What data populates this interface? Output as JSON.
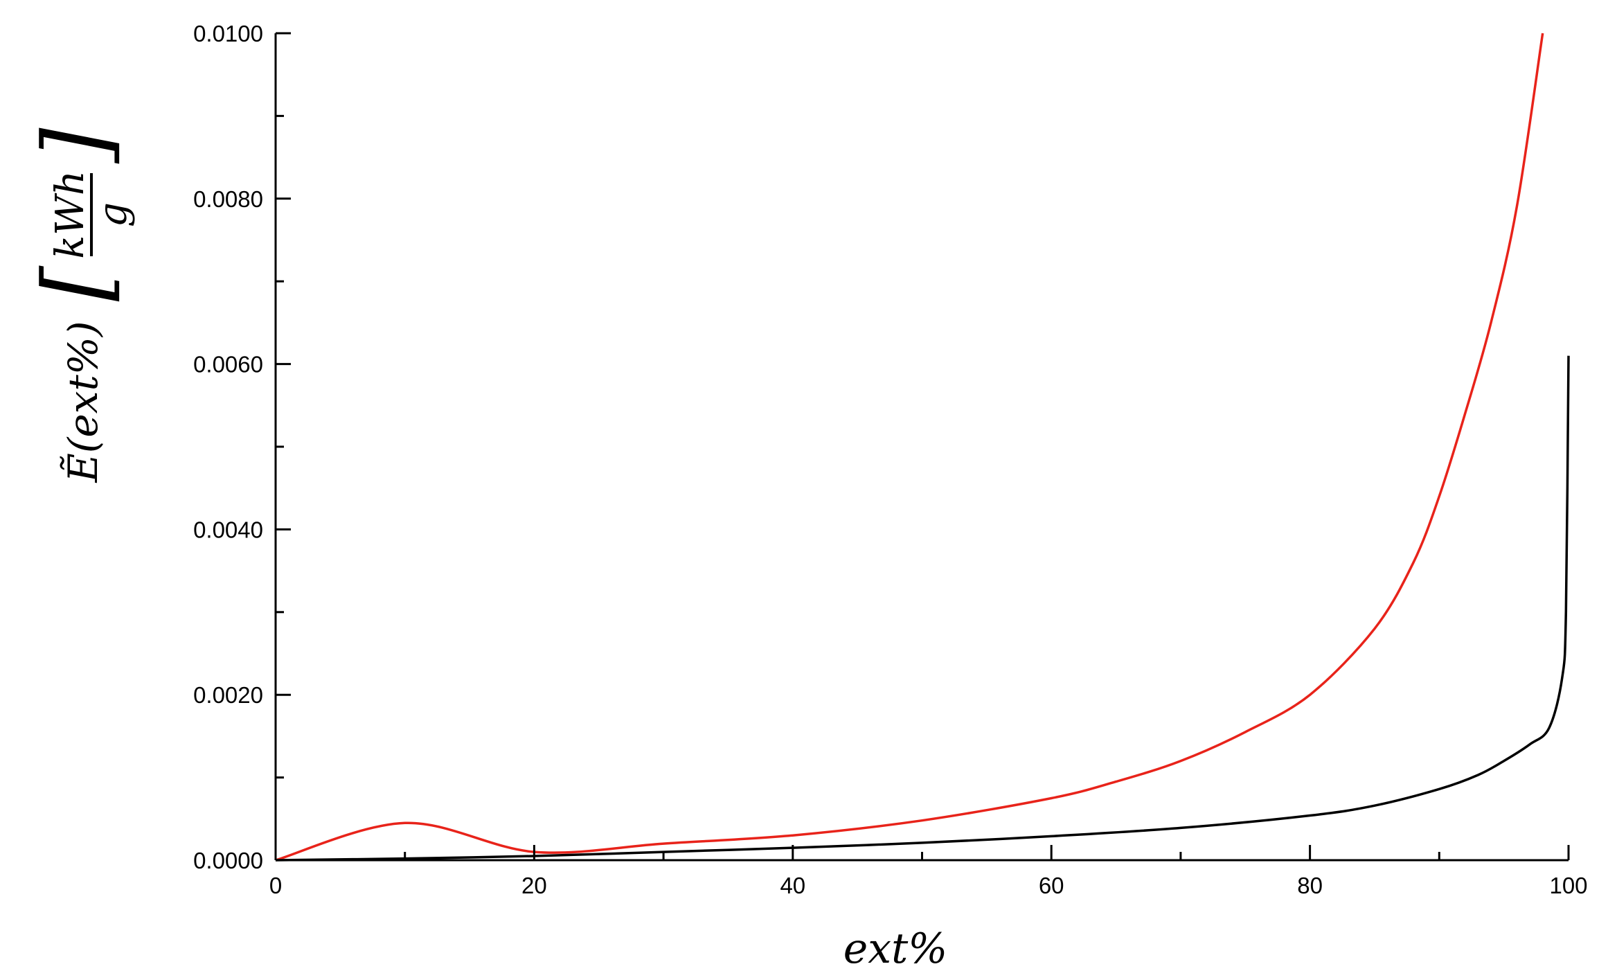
{
  "chart_data": {
    "type": "line",
    "title": "",
    "xlabel": "ext%",
    "ylabel": {
      "prefix": "Ẽ(ext%)",
      "unit_numerator": "kWh",
      "unit_denominator": "g"
    },
    "xlim": [
      0,
      100
    ],
    "ylim": [
      0,
      0.01
    ],
    "x_ticks": [
      "0",
      "20",
      "40",
      "60",
      "80",
      "100"
    ],
    "y_ticks": [
      "0.0000",
      "0.0020",
      "0.0040",
      "0.0060",
      "0.0080",
      "0.0100"
    ],
    "grid": false,
    "legend": "none",
    "series": [
      {
        "color": "#e8231a",
        "x": [
          0,
          10,
          20,
          30,
          40,
          50,
          60,
          65,
          70,
          75,
          80,
          85,
          88,
          90,
          92,
          94,
          96,
          98
        ],
        "y": [
          0,
          0.00045,
          0.0001,
          0.0002,
          0.0003,
          0.00048,
          0.00075,
          0.00095,
          0.0012,
          0.00155,
          0.002,
          0.0028,
          0.0036,
          0.0044,
          0.0054,
          0.0065,
          0.0079,
          0.01
        ]
      },
      {
        "color": "#000000",
        "x": [
          0,
          10,
          20,
          30,
          40,
          50,
          60,
          70,
          80,
          85,
          90,
          93,
          95,
          97,
          98.5,
          99.5,
          99.8,
          100
        ],
        "y": [
          0,
          2e-05,
          5e-05,
          0.0001,
          0.00015,
          0.00021,
          0.00029,
          0.00039,
          0.00054,
          0.00066,
          0.00086,
          0.00103,
          0.0012,
          0.0014,
          0.0016,
          0.0022,
          0.003,
          0.0061
        ]
      }
    ]
  }
}
